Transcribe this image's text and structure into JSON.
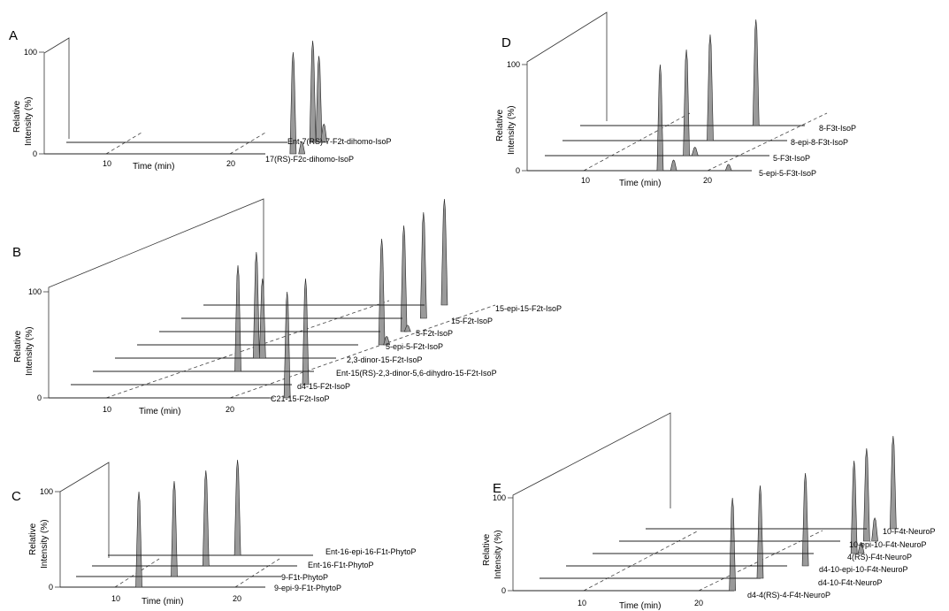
{
  "chart_data": [
    {
      "panel": "A",
      "type": "line",
      "style": "stacked 3D chromatograms",
      "xlabel": "Time (min)",
      "ylabel": "Relative Intensity (%)",
      "x_ticks": [
        10,
        20
      ],
      "y_ticks": [
        0,
        100
      ],
      "series": [
        {
          "name": "17(RS)-F2c-dihomo-IsoP",
          "peaks": [
            {
              "x": 20.1,
              "y": 100
            },
            {
              "x": 20.8,
              "y": 12
            }
          ]
        },
        {
          "name": "Ent-7(RS)-7-F2t-dihomo-IsoP",
          "peaks": [
            {
              "x": 19.9,
              "y": 100
            },
            {
              "x": 20.4,
              "y": 85
            },
            {
              "x": 20.8,
              "y": 18
            }
          ]
        }
      ]
    },
    {
      "panel": "B",
      "type": "line",
      "style": "stacked 3D chromatograms",
      "xlabel": "Time (min)",
      "ylabel": "Relative Intensity (%)",
      "x_ticks": [
        10,
        20
      ],
      "y_ticks": [
        0,
        100
      ],
      "series": [
        {
          "name": "C21-15-F2t-IsoP",
          "peaks": [
            {
              "x": 19.4,
              "y": 100
            }
          ]
        },
        {
          "name": "d4-15-F2t-IsoP",
          "peaks": [
            {
              "x": 19.1,
              "y": 100
            }
          ]
        },
        {
          "name": "Ent-15(RS)-2,3-dinor-5,6-dihydro-15-F2t-IsoP",
          "peaks": [
            {
              "x": 11.8,
              "y": 100
            }
          ]
        },
        {
          "name": "2,3-dinor-15-F2t-IsoP",
          "peaks": [
            {
              "x": 11.5,
              "y": 100
            },
            {
              "x": 12.0,
              "y": 75
            }
          ]
        },
        {
          "name": "5-epi-5-F2t-IsoP",
          "peaks": [
            {
              "x": 19.9,
              "y": 100
            },
            {
              "x": 20.3,
              "y": 8
            }
          ]
        },
        {
          "name": "5-F2t-IsoP",
          "peaks": [
            {
              "x": 19.9,
              "y": 100
            },
            {
              "x": 20.2,
              "y": 6
            }
          ]
        },
        {
          "name": "15-F2t-IsoP",
          "peaks": [
            {
              "x": 19.7,
              "y": 100
            }
          ]
        },
        {
          "name": "15-epi-15-F2t-IsoP",
          "peaks": [
            {
              "x": 19.6,
              "y": 100
            }
          ]
        }
      ]
    },
    {
      "panel": "C",
      "type": "line",
      "style": "stacked 3D chromatograms",
      "xlabel": "Time (min)",
      "ylabel": "Relative Intensity (%)",
      "x_ticks": [
        10,
        20
      ],
      "y_ticks": [
        0,
        100
      ],
      "series": [
        {
          "name": "9-epi-9-F1t-PhytoP",
          "peaks": [
            {
              "x": 6.5,
              "y": 100
            }
          ]
        },
        {
          "name": "9-F1t-PhytoP",
          "peaks": [
            {
              "x": 8.1,
              "y": 100
            }
          ]
        },
        {
          "name": "Ent-16-F1t-PhytoP",
          "peaks": [
            {
              "x": 9.4,
              "y": 100
            }
          ]
        },
        {
          "name": "Ent-16-epi-16-F1t-PhytoP",
          "peaks": [
            {
              "x": 10.7,
              "y": 100
            }
          ]
        }
      ]
    },
    {
      "panel": "D",
      "type": "line",
      "style": "stacked 3D chromatograms",
      "xlabel": "Time (min)",
      "ylabel": "Relative Intensity (%)",
      "x_ticks": [
        10,
        20
      ],
      "y_ticks": [
        0,
        100
      ],
      "series": [
        {
          "name": "5-epi-5-F3t-IsoP",
          "peaks": [
            {
              "x": 10.9,
              "y": 100
            },
            {
              "x": 12.0,
              "y": 10
            },
            {
              "x": 16.5,
              "y": 6
            }
          ]
        },
        {
          "name": "5-F3t-IsoP",
          "peaks": [
            {
              "x": 11.6,
              "y": 100
            },
            {
              "x": 12.3,
              "y": 8
            }
          ]
        },
        {
          "name": "8-epi-8-F3t-IsoP",
          "peaks": [
            {
              "x": 12.1,
              "y": 100
            }
          ]
        },
        {
          "name": "8-F3t-IsoP",
          "peaks": [
            {
              "x": 14.4,
              "y": 100
            }
          ]
        }
      ]
    },
    {
      "panel": "E",
      "type": "line",
      "style": "stacked 3D chromatograms",
      "xlabel": "Time (min)",
      "ylabel": "Relative Intensity (%)",
      "x_ticks": [
        10,
        20
      ],
      "y_ticks": [
        0,
        100
      ],
      "series": [
        {
          "name": "d4-4(RS)-4-F4t-NeuroP",
          "peaks": [
            {
              "x": 18.8,
              "y": 100
            }
          ]
        },
        {
          "name": "d4-10-F4t-NeuroP",
          "peaks": [
            {
              "x": 18.9,
              "y": 100
            }
          ]
        },
        {
          "name": "d4-10-epi-10-F4t-NeuroP",
          "peaks": [
            {
              "x": 20.5,
              "y": 100
            }
          ]
        },
        {
          "name": "4(RS)-F4t-NeuroP",
          "peaks": [
            {
              "x": 22.4,
              "y": 100
            },
            {
              "x": 23.0,
              "y": 12
            }
          ]
        },
        {
          "name": "10-epi-10-F4t-NeuroP",
          "peaks": [
            {
              "x": 21.2,
              "y": 100
            },
            {
              "x": 21.9,
              "y": 25
            }
          ]
        },
        {
          "name": "10-F4t-NeuroP",
          "peaks": [
            {
              "x": 21.2,
              "y": 100
            }
          ]
        }
      ]
    }
  ],
  "annotations": {
    "A": {
      "label": "A",
      "y100": "100",
      "y0": "0",
      "x10": "10",
      "x20": "20",
      "xlabel": "Time (min)",
      "ylabel1": "Relative",
      "ylabel2": "Intensity (%)",
      "s0": "17(RS)-F2c-dihomo-IsoP",
      "s1": "Ent-7(RS)-7-F2t-dihomo-IsoP"
    },
    "B": {
      "label": "B",
      "y100": "100",
      "y0": "0",
      "x10": "10",
      "x20": "20",
      "xlabel": "Time (min)",
      "ylabel1": "Relative",
      "ylabel2": "Intensity (%)",
      "s0": "C21-15-F2t-IsoP",
      "s1": "d4-15-F2t-IsoP",
      "s2": "Ent-15(RS)-2,3-dinor-5,6-dihydro-15-F2t-IsoP",
      "s3": "2,3-dinor-15-F2t-IsoP",
      "s4": "5-epi-5-F2t-IsoP",
      "s5": "5-F2t-IsoP",
      "s6": "15-F2t-IsoP",
      "s7": "15-epi-15-F2t-IsoP"
    },
    "C": {
      "label": "C",
      "y100": "100",
      "y0": "0",
      "x10": "10",
      "x20": "20",
      "xlabel": "Time (min)",
      "ylabel1": "Relative",
      "ylabel2": "Intensity (%)",
      "s0": "9-epi-9-F1t-PhytoP",
      "s1": "9-F1t-PhytoP",
      "s2": "Ent-16-F1t-PhytoP",
      "s3": "Ent-16-epi-16-F1t-PhytoP"
    },
    "D": {
      "label": "D",
      "y100": "100",
      "y0": "0",
      "x10": "10",
      "x20": "20",
      "xlabel": "Time (min)",
      "ylabel1": "Relative",
      "ylabel2": "Intensity (%)",
      "s0": "5-epi-5-F3t-IsoP",
      "s1": "5-F3t-IsoP",
      "s2": "8-epi-8-F3t-IsoP",
      "s3": "8-F3t-IsoP"
    },
    "E": {
      "label": "E",
      "y100": "100",
      "y0": "0",
      "x10": "10",
      "x20": "20",
      "xlabel": "Time (min)",
      "ylabel1": "Relative",
      "ylabel2": "Intensity (%)",
      "s0": "d4-4(RS)-4-F4t-NeuroP",
      "s1": "d4-10-F4t-NeuroP",
      "s2": "d4-10-epi-10-F4t-NeuroP",
      "s3": "4(RS)-F4t-NeuroP",
      "s4": "10-epi-10-F4t-NeuroP",
      "s5": "10-F4t-NeuroP"
    }
  }
}
